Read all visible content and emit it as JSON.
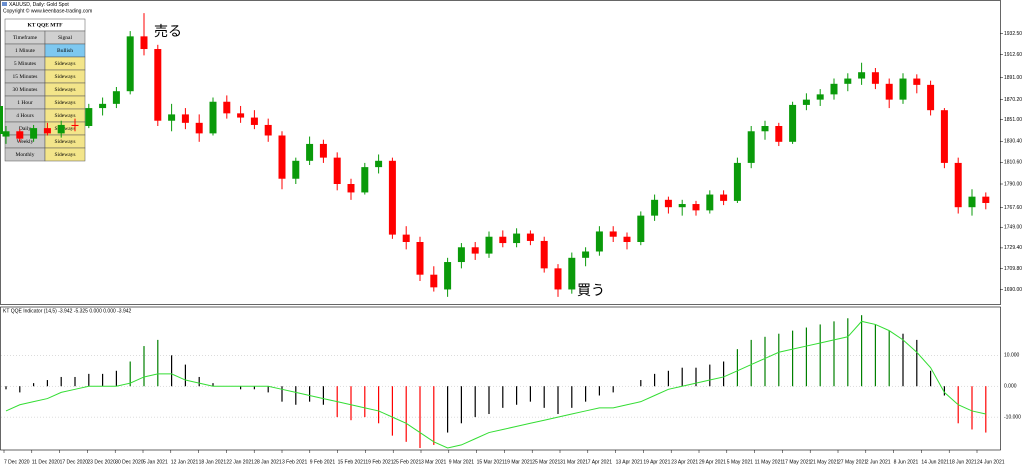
{
  "window": {
    "title": "XAUUSD, Daily:  Gold Spot",
    "copyright": "Copyright © www.keenbase-trading.com"
  },
  "annotations": {
    "sell": "売る",
    "buy": "買う"
  },
  "table": {
    "title": "KT QQE MTF",
    "headers": [
      "Timeframe",
      "Signal"
    ],
    "rows": [
      [
        "1 Minute",
        "Bullish"
      ],
      [
        "5 Minutes",
        "Sideways"
      ],
      [
        "15 Minutes",
        "Sideways"
      ],
      [
        "30 Minutes",
        "Sideways"
      ],
      [
        "1 Hour",
        "Sideways"
      ],
      [
        "4 Hours",
        "Sideways"
      ],
      [
        "Daily",
        "Sideways"
      ],
      [
        "Weekly",
        "Sideways"
      ],
      [
        "Monthly",
        "Sideways"
      ]
    ]
  },
  "price_chart": {
    "type": "candlestick",
    "up_color": "#0a9a0a",
    "down_color": "#ff0000",
    "ylim": [
      1680,
      1955
    ],
    "yticks": [
      {
        "value": 1932.5,
        "label": "1932.50"
      },
      {
        "value": 1912.6,
        "label": "1912.60"
      },
      {
        "value": 1891,
        "label": "1891.00"
      },
      {
        "value": 1870.2,
        "label": "1870.20"
      },
      {
        "value": 1851,
        "label": "1851.00"
      },
      {
        "value": 1830.4,
        "label": "1830.40"
      },
      {
        "value": 1810.6,
        "label": "1810.60"
      },
      {
        "value": 1790,
        "label": "1790.00"
      },
      {
        "value": 1767.6,
        "label": "1767.60"
      },
      {
        "value": 1749,
        "label": "1749.00"
      },
      {
        "value": 1729.4,
        "label": "1729.40"
      },
      {
        "value": 1709.8,
        "label": "1709.80"
      },
      {
        "value": 1690,
        "label": "1690.00"
      }
    ],
    "candles": [
      [
        1835,
        1845,
        1828,
        1840
      ],
      [
        1840,
        1842,
        1830,
        1833
      ],
      [
        1833,
        1846,
        1830,
        1843
      ],
      [
        1843,
        1848,
        1836,
        1838
      ],
      [
        1838,
        1850,
        1834,
        1846
      ],
      [
        1846,
        1852,
        1840,
        1845
      ],
      [
        1845,
        1866,
        1843,
        1862
      ],
      [
        1862,
        1872,
        1855,
        1866
      ],
      [
        1866,
        1882,
        1862,
        1878
      ],
      [
        1878,
        1935,
        1875,
        1930
      ],
      [
        1930,
        1952,
        1912,
        1918
      ],
      [
        1918,
        1922,
        1845,
        1850
      ],
      [
        1850,
        1866,
        1840,
        1856
      ],
      [
        1856,
        1862,
        1842,
        1848
      ],
      [
        1848,
        1856,
        1830,
        1838
      ],
      [
        1838,
        1872,
        1836,
        1868
      ],
      [
        1868,
        1874,
        1852,
        1857
      ],
      [
        1857,
        1864,
        1848,
        1853
      ],
      [
        1853,
        1860,
        1842,
        1846
      ],
      [
        1846,
        1852,
        1830,
        1836
      ],
      [
        1836,
        1840,
        1785,
        1795
      ],
      [
        1795,
        1815,
        1790,
        1812
      ],
      [
        1812,
        1835,
        1808,
        1828
      ],
      [
        1828,
        1832,
        1810,
        1815
      ],
      [
        1815,
        1820,
        1784,
        1790
      ],
      [
        1790,
        1795,
        1775,
        1782
      ],
      [
        1782,
        1810,
        1780,
        1806
      ],
      [
        1806,
        1818,
        1800,
        1812
      ],
      [
        1812,
        1815,
        1738,
        1742
      ],
      [
        1742,
        1750,
        1728,
        1735
      ],
      [
        1735,
        1740,
        1698,
        1704
      ],
      [
        1704,
        1712,
        1688,
        1692
      ],
      [
        1690,
        1720,
        1683,
        1716
      ],
      [
        1716,
        1734,
        1710,
        1730
      ],
      [
        1730,
        1735,
        1718,
        1724
      ],
      [
        1724,
        1745,
        1720,
        1740
      ],
      [
        1740,
        1746,
        1730,
        1734
      ],
      [
        1734,
        1748,
        1730,
        1743
      ],
      [
        1743,
        1746,
        1732,
        1736
      ],
      [
        1736,
        1740,
        1706,
        1710
      ],
      [
        1710,
        1714,
        1683,
        1690
      ],
      [
        1690,
        1725,
        1686,
        1720
      ],
      [
        1720,
        1730,
        1712,
        1726
      ],
      [
        1726,
        1750,
        1722,
        1745
      ],
      [
        1745,
        1750,
        1735,
        1740
      ],
      [
        1740,
        1744,
        1728,
        1735
      ],
      [
        1735,
        1764,
        1732,
        1760
      ],
      [
        1760,
        1780,
        1755,
        1775
      ],
      [
        1775,
        1778,
        1762,
        1768
      ],
      [
        1768,
        1775,
        1760,
        1771
      ],
      [
        1771,
        1774,
        1760,
        1765
      ],
      [
        1765,
        1784,
        1762,
        1780
      ],
      [
        1780,
        1784,
        1770,
        1774
      ],
      [
        1774,
        1815,
        1772,
        1810
      ],
      [
        1810,
        1845,
        1805,
        1840
      ],
      [
        1840,
        1850,
        1832,
        1845
      ],
      [
        1845,
        1848,
        1826,
        1830
      ],
      [
        1830,
        1868,
        1828,
        1865
      ],
      [
        1865,
        1876,
        1860,
        1870
      ],
      [
        1870,
        1880,
        1864,
        1875
      ],
      [
        1875,
        1890,
        1870,
        1885
      ],
      [
        1885,
        1895,
        1878,
        1890
      ],
      [
        1890,
        1905,
        1884,
        1896
      ],
      [
        1896,
        1900,
        1880,
        1885
      ],
      [
        1885,
        1890,
        1862,
        1870
      ],
      [
        1870,
        1895,
        1866,
        1890
      ],
      [
        1890,
        1894,
        1876,
        1884
      ],
      [
        1884,
        1888,
        1855,
        1860
      ],
      [
        1860,
        1862,
        1805,
        1810
      ],
      [
        1810,
        1815,
        1762,
        1768
      ],
      [
        1768,
        1785,
        1760,
        1778
      ],
      [
        1778,
        1782,
        1766,
        1772
      ]
    ]
  },
  "indicator": {
    "label": "KT QQE Indicator (14,5) -3.942 -5.325 0.000 0.000 -3.942",
    "type": "histogram",
    "ylim": [
      -20,
      25
    ],
    "line_color": "#33dd33",
    "yticks": [
      {
        "value": 10,
        "label": "10.000"
      },
      {
        "value": 0,
        "label": "0.000"
      },
      {
        "value": -10,
        "label": "-10.000"
      }
    ],
    "palette": {
      "k": "#000000",
      "g": "#008000",
      "r": "#ff0000"
    },
    "values": [
      -1,
      -2,
      1,
      2,
      3,
      3,
      4,
      4,
      5,
      8,
      13,
      15,
      10,
      7,
      3,
      1,
      0,
      -1,
      -1,
      -2,
      -5,
      -6,
      -5,
      -6,
      -10,
      -11,
      -10,
      -12,
      -16,
      -18,
      -20,
      -19,
      -15,
      -12,
      -10,
      -9,
      -7,
      -6,
      -5,
      -7,
      -9,
      -7,
      -5,
      -3,
      -2,
      0,
      2,
      4,
      5,
      6,
      6,
      7,
      8,
      12,
      15,
      16,
      17,
      18,
      19,
      20,
      21,
      22,
      23,
      20,
      18,
      17,
      15,
      5,
      -3,
      -12,
      -14,
      -15
    ],
    "colors": [
      "k",
      "k",
      "k",
      "k",
      "k",
      "k",
      "k",
      "k",
      "k",
      "g",
      "g",
      "g",
      "k",
      "k",
      "k",
      "k",
      "k",
      "k",
      "k",
      "k",
      "k",
      "k",
      "k",
      "k",
      "r",
      "r",
      "r",
      "r",
      "r",
      "r",
      "r",
      "r",
      "k",
      "k",
      "k",
      "k",
      "k",
      "k",
      "k",
      "k",
      "k",
      "k",
      "k",
      "k",
      "k",
      "k",
      "k",
      "k",
      "k",
      "k",
      "k",
      "k",
      "k",
      "g",
      "g",
      "g",
      "g",
      "g",
      "g",
      "g",
      "g",
      "g",
      "g",
      "g",
      "g",
      "k",
      "k",
      "k",
      "k",
      "r",
      "r",
      "r"
    ],
    "signal": [
      -8,
      -6,
      -5,
      -4,
      -2,
      -1,
      0,
      0,
      0,
      1,
      3,
      4,
      4,
      2,
      1,
      0,
      0,
      0,
      0,
      0,
      -1,
      -2,
      -3,
      -4,
      -5,
      -6,
      -7,
      -8,
      -10,
      -12,
      -15,
      -18,
      -20,
      -19,
      -17,
      -15,
      -14,
      -13,
      -12,
      -11,
      -10,
      -9,
      -8,
      -7,
      -7,
      -6,
      -5,
      -3,
      -1,
      0,
      1,
      2,
      3,
      5,
      7,
      9,
      11,
      12,
      13,
      14,
      15,
      16,
      21,
      20,
      18,
      15,
      11,
      6,
      -2,
      -6,
      -8,
      -9
    ]
  },
  "dates": [
    "7 Dec 2020",
    "11 Dec 2020",
    "17 Dec 2020",
    "23 Dec 2020",
    "30 Dec 2020",
    "5 Jan 2021",
    "12 Jan 2021",
    "18 Jan 2021",
    "22 Jan 2021",
    "28 Jan 2021",
    "3 Feb 2021",
    "9 Feb 2021",
    "15 Feb 2021",
    "19 Feb 2021",
    "25 Feb 2021",
    "3 Mar 2021",
    "9 Mar 2021",
    "15 Mar 2021",
    "19 Mar 2021",
    "25 Mar 2021",
    "31 Mar 2021",
    "7 Apr 2021",
    "13 Apr 2021",
    "19 Apr 2021",
    "23 Apr 2021",
    "29 Apr 2021",
    "5 May 2021",
    "11 May 2021",
    "17 May 2021",
    "21 May 2021",
    "27 May 2021",
    "2 Jun 2021",
    "8 Jun 2021",
    "14 Jun 2021",
    "18 Jun 2021",
    "24 Jun 2021"
  ]
}
